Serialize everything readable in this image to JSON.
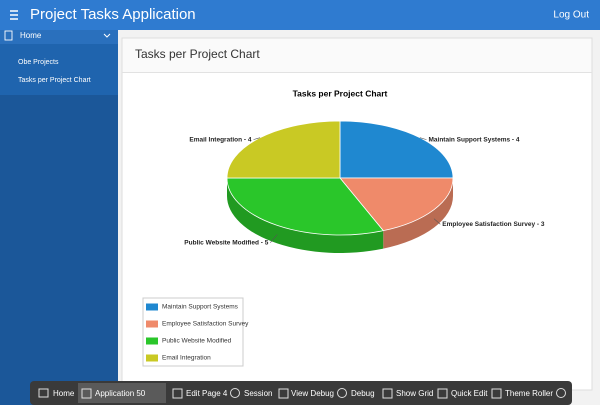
{
  "header": {
    "title": "Project Tasks Application",
    "logout": "Log Out"
  },
  "nav": {
    "items": [
      "Home",
      "Obe Projects",
      "Tasks per Project Chart"
    ]
  },
  "region": {
    "title": "Tasks per Project Chart"
  },
  "chart_data": {
    "type": "pie",
    "title": "Tasks per Project Chart",
    "categories": [
      "Maintain Support Systems",
      "Employee Satisfaction Survey",
      "Public Website Modified",
      "Email Integration"
    ],
    "values": [
      4,
      3,
      5,
      4
    ],
    "value_labels": [
      "Maintain Support Systems - 4",
      "Employee Satisfaction Survey - 3",
      "Public Website Modified - 5",
      "Email Integration - 4"
    ],
    "colors": [
      "#1f88d0",
      "#ef8a6a",
      "#2ac62a",
      "#c9c924"
    ],
    "legend": "bottom-left"
  },
  "toolbar": {
    "items": [
      "Home",
      "Application 50",
      "Edit Page 4",
      "Session",
      "View Debug",
      "Debug",
      "Show Grid",
      "Quick Edit",
      "Theme Roller"
    ]
  }
}
